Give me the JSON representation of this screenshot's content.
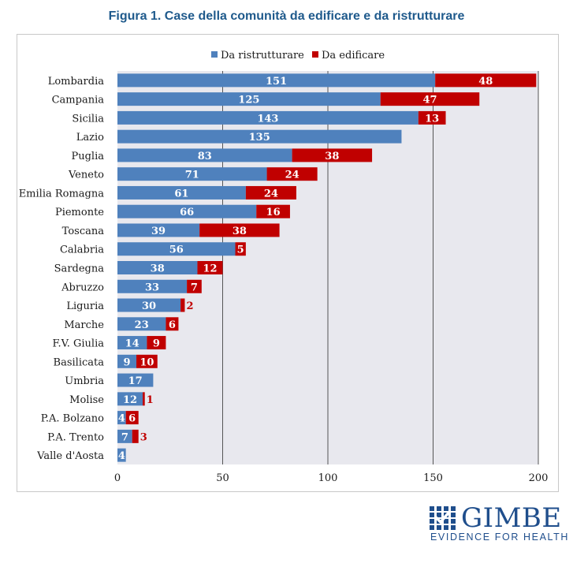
{
  "title": "Figura 1. Case della comunità da edificare e da ristrutturare",
  "logo": {
    "name": "GIMBE",
    "tagline": "EVIDENCE FOR HEALTH"
  },
  "colors": {
    "ristrutturare": "#4f81bd",
    "edificare": "#c00000",
    "plot_bg": "#e8e8ee",
    "title": "#1f5a8c"
  },
  "chart_data": {
    "type": "bar",
    "orientation": "horizontal",
    "stacked": true,
    "categories": [
      "Lombardia",
      "Campania",
      "Sicilia",
      "Lazio",
      "Puglia",
      "Veneto",
      "Emilia Romagna",
      "Piemonte",
      "Toscana",
      "Calabria",
      "Sardegna",
      "Abruzzo",
      "Liguria",
      "Marche",
      "F.V. Giulia",
      "Basilicata",
      "Umbria",
      "Molise",
      "P.A. Bolzano",
      "P.A. Trento",
      "Valle d'Aosta"
    ],
    "series": [
      {
        "name": "Da ristrutturare",
        "values": [
          151,
          125,
          143,
          135,
          83,
          71,
          61,
          66,
          39,
          56,
          38,
          33,
          30,
          23,
          14,
          9,
          17,
          12,
          4,
          7,
          4
        ]
      },
      {
        "name": "Da edificare",
        "values": [
          48,
          47,
          13,
          0,
          38,
          24,
          24,
          16,
          38,
          5,
          12,
          7,
          2,
          6,
          9,
          10,
          0,
          1,
          6,
          3,
          0
        ]
      }
    ],
    "xlim": [
      0,
      200
    ],
    "xticks": [
      0,
      50,
      100,
      150,
      200
    ],
    "grid": "vertical",
    "legend": "top-center"
  }
}
